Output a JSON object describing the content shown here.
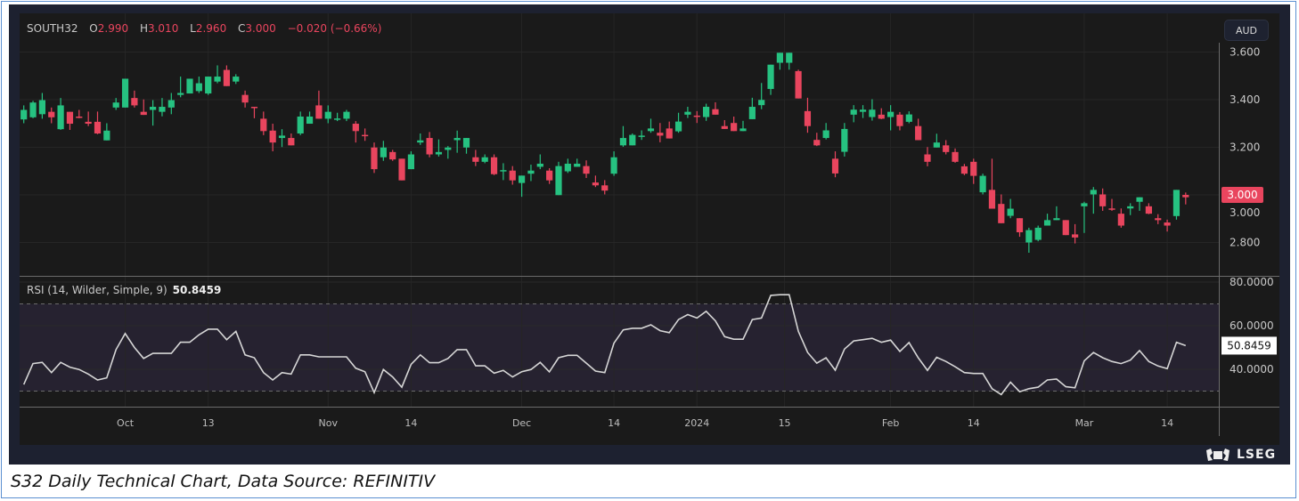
{
  "header": {
    "symbol": "SOUTH32",
    "o_label": "O",
    "o": "2.990",
    "h_label": "H",
    "h": "3.010",
    "l_label": "L",
    "l": "2.960",
    "c_label": "C",
    "c": "3.000",
    "change": "−0.020 (−0.66%)"
  },
  "currency": "AUD",
  "last_price_label": "3.000",
  "rsi": {
    "label": "RSI (14, Wilder, Simple, 9)",
    "value": "50.8459"
  },
  "footer": {
    "brand": "LSEG"
  },
  "caption": "S32 Daily Technical Chart, Data Source: REFINITIV",
  "colors": {
    "up": "#26c281",
    "down": "#e9455e",
    "rsi_line": "#d6d6d6",
    "rsi_band": "#262230",
    "background": "#1a1a1a"
  },
  "chart_data": [
    {
      "type": "candlestick",
      "title": "SOUTH32",
      "ylim": [
        2.7,
        3.65
      ],
      "yticks": [
        3.6,
        3.4,
        3.2,
        3.0,
        2.8
      ],
      "ytick_labels": [
        "3.600",
        "3.400",
        "3.200",
        "3.000",
        "2.800"
      ],
      "x_tick_labels": [
        {
          "index": 11,
          "label": "Oct"
        },
        {
          "index": 20,
          "label": "13"
        },
        {
          "index": 33,
          "label": "Nov"
        },
        {
          "index": 42,
          "label": "14"
        },
        {
          "index": 54,
          "label": "Dec"
        },
        {
          "index": 64,
          "label": "14"
        },
        {
          "index": 73,
          "label": "2024"
        },
        {
          "index": 82.5,
          "label": "15"
        },
        {
          "index": 94,
          "label": "Feb"
        },
        {
          "index": 103,
          "label": "14"
        },
        {
          "index": 115,
          "label": "Mar"
        },
        {
          "index": 124,
          "label": "14"
        }
      ],
      "ohlc_fields": [
        "open",
        "high",
        "low",
        "close"
      ],
      "candles": [
        [
          3.317,
          3.376,
          3.301,
          3.357
        ],
        [
          3.326,
          3.395,
          3.322,
          3.388
        ],
        [
          3.339,
          3.428,
          3.32,
          3.398
        ],
        [
          3.349,
          3.367,
          3.301,
          3.326
        ],
        [
          3.276,
          3.407,
          3.273,
          3.376
        ],
        [
          3.349,
          3.349,
          3.273,
          3.299
        ],
        [
          3.329,
          3.357,
          3.322,
          3.325
        ],
        [
          3.307,
          3.35,
          3.289,
          3.299
        ],
        [
          3.307,
          3.35,
          3.255,
          3.258
        ],
        [
          3.229,
          3.301,
          3.229,
          3.27
        ],
        [
          3.367,
          3.407,
          3.357,
          3.388
        ],
        [
          3.367,
          3.488,
          3.367,
          3.488
        ],
        [
          3.407,
          3.438,
          3.367,
          3.376
        ],
        [
          3.349,
          3.401,
          3.336,
          3.336
        ],
        [
          3.357,
          3.398,
          3.291,
          3.37
        ],
        [
          3.349,
          3.407,
          3.33,
          3.37
        ],
        [
          3.367,
          3.428,
          3.339,
          3.398
        ],
        [
          3.42,
          3.497,
          3.41,
          3.428
        ],
        [
          3.426,
          3.488,
          3.426,
          3.488
        ],
        [
          3.436,
          3.497,
          3.428,
          3.469
        ],
        [
          3.426,
          3.497,
          3.42,
          3.497
        ],
        [
          3.476,
          3.544,
          3.469,
          3.497
        ],
        [
          3.525,
          3.544,
          3.457,
          3.457
        ],
        [
          3.476,
          3.507,
          3.466,
          3.497
        ],
        [
          3.42,
          3.438,
          3.367,
          3.388
        ],
        [
          3.37,
          3.37,
          3.322,
          3.367
        ],
        [
          3.32,
          3.35,
          3.251,
          3.268
        ],
        [
          3.27,
          3.299,
          3.183,
          3.22
        ],
        [
          3.239,
          3.276,
          3.201,
          3.249
        ],
        [
          3.239,
          3.258,
          3.208,
          3.208
        ],
        [
          3.258,
          3.35,
          3.251,
          3.329
        ],
        [
          3.299,
          3.35,
          3.299,
          3.329
        ],
        [
          3.376,
          3.438,
          3.32,
          3.32
        ],
        [
          3.32,
          3.376,
          3.301,
          3.349
        ],
        [
          3.32,
          3.345,
          3.31,
          3.321
        ],
        [
          3.32,
          3.357,
          3.31,
          3.349
        ],
        [
          3.299,
          3.31,
          3.22,
          3.268
        ],
        [
          3.252,
          3.279,
          3.227,
          3.249
        ],
        [
          3.199,
          3.22,
          3.092,
          3.108
        ],
        [
          3.158,
          3.227,
          3.143,
          3.199
        ],
        [
          3.18,
          3.189,
          3.143,
          3.149
        ],
        [
          3.152,
          3.152,
          3.061,
          3.061
        ],
        [
          3.108,
          3.183,
          3.108,
          3.17
        ],
        [
          3.22,
          3.258,
          3.21,
          3.229
        ],
        [
          3.239,
          3.264,
          3.158,
          3.17
        ],
        [
          3.17,
          3.233,
          3.161,
          3.18
        ],
        [
          3.189,
          3.205,
          3.152,
          3.199
        ],
        [
          3.23,
          3.27,
          3.177,
          3.239
        ],
        [
          3.199,
          3.239,
          3.173,
          3.239
        ],
        [
          3.158,
          3.189,
          3.121,
          3.139
        ],
        [
          3.139,
          3.17,
          3.133,
          3.158
        ],
        [
          3.158,
          3.17,
          3.083,
          3.087
        ],
        [
          3.102,
          3.133,
          3.062,
          3.104
        ],
        [
          3.102,
          3.121,
          3.043,
          3.061
        ],
        [
          3.05,
          3.081,
          2.992,
          3.081
        ],
        [
          3.089,
          3.127,
          3.058,
          3.102
        ],
        [
          3.118,
          3.17,
          3.108,
          3.131
        ],
        [
          3.102,
          3.112,
          3.046,
          3.061
        ],
        [
          2.999,
          3.139,
          2.999,
          3.121
        ],
        [
          3.099,
          3.152,
          3.092,
          3.131
        ],
        [
          3.118,
          3.152,
          3.118,
          3.131
        ],
        [
          3.121,
          3.145,
          3.071,
          3.089
        ],
        [
          3.052,
          3.081,
          3.033,
          3.04
        ],
        [
          3.04,
          3.062,
          3.002,
          3.018
        ],
        [
          3.089,
          3.183,
          3.08,
          3.158
        ],
        [
          3.208,
          3.289,
          3.202,
          3.239
        ],
        [
          3.208,
          3.258,
          3.208,
          3.252
        ],
        [
          3.246,
          3.271,
          3.231,
          3.249
        ],
        [
          3.268,
          3.32,
          3.261,
          3.279
        ],
        [
          3.261,
          3.302,
          3.221,
          3.249
        ],
        [
          3.279,
          3.308,
          3.237,
          3.237
        ],
        [
          3.267,
          3.345,
          3.261,
          3.308
        ],
        [
          3.337,
          3.37,
          3.323,
          3.349
        ],
        [
          3.333,
          3.352,
          3.302,
          3.329
        ],
        [
          3.327,
          3.383,
          3.311,
          3.37
        ],
        [
          3.36,
          3.389,
          3.337,
          3.337
        ],
        [
          3.289,
          3.314,
          3.277,
          3.277
        ],
        [
          3.302,
          3.329,
          3.268,
          3.268
        ],
        [
          3.268,
          3.311,
          3.268,
          3.279
        ],
        [
          3.318,
          3.408,
          3.318,
          3.37
        ],
        [
          3.377,
          3.47,
          3.36,
          3.399
        ],
        [
          3.445,
          3.547,
          3.42,
          3.547
        ],
        [
          3.555,
          3.597,
          3.526,
          3.597
        ],
        [
          3.555,
          3.597,
          3.526,
          3.597
        ],
        [
          3.52,
          3.526,
          3.405,
          3.405
        ],
        [
          3.352,
          3.408,
          3.261,
          3.289
        ],
        [
          3.231,
          3.261,
          3.205,
          3.208
        ],
        [
          3.239,
          3.302,
          3.233,
          3.271
        ],
        [
          3.152,
          3.183,
          3.074,
          3.09
        ],
        [
          3.181,
          3.302,
          3.161,
          3.277
        ],
        [
          3.337,
          3.377,
          3.305,
          3.358
        ],
        [
          3.349,
          3.377,
          3.323,
          3.358
        ],
        [
          3.327,
          3.402,
          3.312,
          3.358
        ],
        [
          3.337,
          3.364,
          3.318,
          3.32
        ],
        [
          3.327,
          3.377,
          3.271,
          3.349
        ],
        [
          3.337,
          3.348,
          3.271,
          3.289
        ],
        [
          3.307,
          3.351,
          3.301,
          3.338
        ],
        [
          3.289,
          3.32,
          3.23,
          3.23
        ],
        [
          3.17,
          3.201,
          3.12,
          3.139
        ],
        [
          3.199,
          3.257,
          3.199,
          3.22
        ],
        [
          3.208,
          3.23,
          3.17,
          3.18
        ],
        [
          3.18,
          3.195,
          3.135,
          3.139
        ],
        [
          3.12,
          3.13,
          3.083,
          3.089
        ],
        [
          3.139,
          3.152,
          3.046,
          3.08
        ],
        [
          3.011,
          3.089,
          3.002,
          3.08
        ],
        [
          3.021,
          3.152,
          2.942,
          2.942
        ],
        [
          2.962,
          3.002,
          2.881,
          2.881
        ],
        [
          2.912,
          2.983,
          2.902,
          2.942
        ],
        [
          2.902,
          2.902,
          2.824,
          2.843
        ],
        [
          2.8,
          2.862,
          2.757,
          2.852
        ],
        [
          2.811,
          2.871,
          2.805,
          2.862
        ],
        [
          2.871,
          2.921,
          2.871,
          2.894
        ],
        [
          2.894,
          2.952,
          2.894,
          2.902
        ],
        [
          2.894,
          2.894,
          2.831,
          2.831
        ],
        [
          2.834,
          2.877,
          2.796,
          2.821
        ],
        [
          2.952,
          2.971,
          2.84,
          2.965
        ],
        [
          3.002,
          3.033,
          2.921,
          3.021
        ],
        [
          3.002,
          3.027,
          2.933,
          2.952
        ],
        [
          2.943,
          2.983,
          2.933,
          2.941
        ],
        [
          2.921,
          2.943,
          2.862,
          2.871
        ],
        [
          2.943,
          2.965,
          2.915,
          2.952
        ],
        [
          2.971,
          2.99,
          2.933,
          2.99
        ],
        [
          2.952,
          2.965,
          2.919,
          2.921
        ],
        [
          2.902,
          2.919,
          2.877,
          2.894
        ],
        [
          2.884,
          2.896,
          2.846,
          2.871
        ],
        [
          2.911,
          3.021,
          2.896,
          3.021
        ],
        [
          2.99,
          3.01,
          2.96,
          3.0
        ]
      ],
      "last_change": -0.02,
      "last_price": 3.0
    },
    {
      "type": "line",
      "title": "RSI (14, Wilder, Simple, 9)",
      "ylim": [
        20,
        82
      ],
      "yticks": [
        80,
        60,
        40
      ],
      "ytick_labels": [
        "80.0000",
        "60.0000",
        "40.0000"
      ],
      "bands": [
        30,
        70
      ],
      "last_value": 50.8459,
      "values": [
        33,
        42.6,
        43.2,
        38.5,
        43.2,
        41,
        39.9,
        37.8,
        35.1,
        36.1,
        49,
        56.4,
        50,
        45,
        47.3,
        47.3,
        47.3,
        52.4,
        52.4,
        55.8,
        58.4,
        58.4,
        53.6,
        57.4,
        46.6,
        45.3,
        38.5,
        35.1,
        38.5,
        37.8,
        46.6,
        46.6,
        45.7,
        45.7,
        45.7,
        45.7,
        40.5,
        38.9,
        29.3,
        39.9,
        36.5,
        31.8,
        42.3,
        46.6,
        43,
        43,
        45,
        49,
        49,
        41.6,
        41.6,
        38.2,
        39.5,
        36.5,
        38.9,
        39.9,
        43.2,
        38.8,
        45.3,
        46.4,
        46.4,
        42.8,
        39.2,
        38.5,
        52,
        58.1,
        58.8,
        58.8,
        60.4,
        57.7,
        56.8,
        62.8,
        65.1,
        63.5,
        66.6,
        62.2,
        55,
        53.8,
        53.8,
        62.8,
        63.5,
        73.9,
        74.2,
        74.2,
        57.4,
        47.7,
        42.8,
        45.3,
        39.6,
        49.3,
        53,
        53.6,
        54.2,
        52.4,
        53.4,
        48.2,
        52.3,
        45.3,
        39.5,
        45.5,
        43.6,
        41.2,
        38.5,
        38.1,
        38.1,
        31.1,
        28.4,
        34.1,
        29.7,
        31.1,
        31.8,
        35.1,
        35.5,
        32,
        31.5,
        43.9,
        47.7,
        45.3,
        43.6,
        42.6,
        44.2,
        48.6,
        43.6,
        41.5,
        40.3,
        52.4,
        50.8459
      ]
    }
  ]
}
